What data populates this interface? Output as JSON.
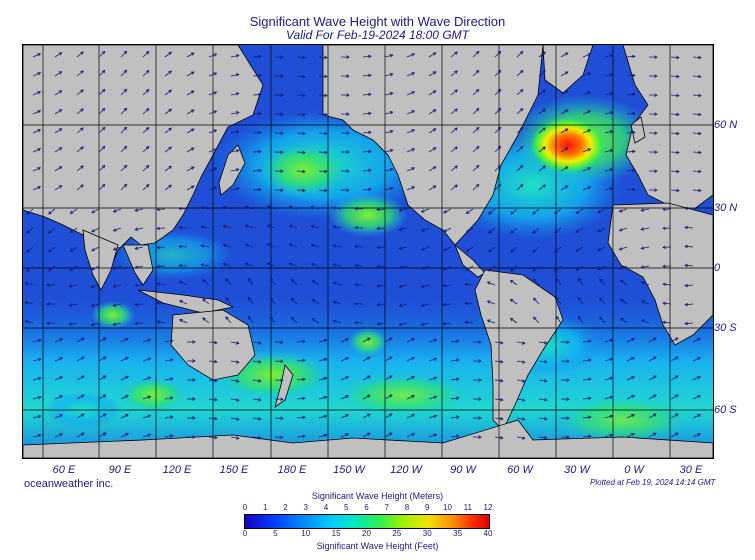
{
  "header": {
    "title": "Significant Wave Height with Wave Direction",
    "subtitle": "Valid For Feb-19-2024 18:00 GMT"
  },
  "map": {
    "projection": "equirectangular world, Pacific-centred",
    "colors": {
      "ocean_calm": "#1f4fd6",
      "ocean_mid": "#19b6f0",
      "ocean_green": "#3ef05a",
      "ocean_peak": "#e81010",
      "land": "#c0c0c0",
      "arrows": "#1a1a7a"
    },
    "lon_labels": [
      "60 E",
      "90 E",
      "120 E",
      "150 E",
      "180 E",
      "150 W",
      "120 W",
      "90 W",
      "60 W",
      "30 W",
      "0 W",
      "30 E"
    ],
    "lat_labels": [
      "60 N",
      "30 N",
      "0",
      "30 S",
      "60 S"
    ]
  },
  "footer": {
    "credit": "oceanweather inc.",
    "plotted": "Plotted at Feb 19, 2024 14:14 GMT"
  },
  "legend": {
    "title_top": "Significant Wave Height (Meters)",
    "title_bottom": "Significant Wave Height (Feet)",
    "meters": [
      "0",
      "1",
      "2",
      "3",
      "4",
      "5",
      "6",
      "7",
      "8",
      "9",
      "10",
      "11",
      "12"
    ],
    "feet": [
      "0",
      "5",
      "10",
      "15",
      "20",
      "25",
      "30",
      "35",
      "40"
    ]
  }
}
